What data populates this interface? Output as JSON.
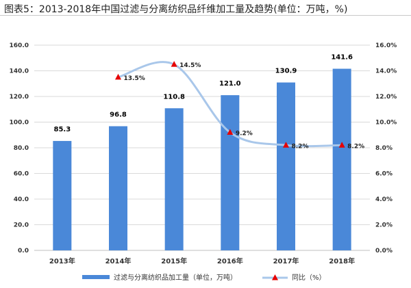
{
  "title": "图表5：2013-2018年中国过滤与分离纺织品纤维加工量及趋势(单位：万吨，%)",
  "colors": {
    "bar": "#4a88d8",
    "line": "#a9c7ea",
    "marker": "#e60000",
    "grid": "#d9d9d9"
  },
  "chart_data": {
    "type": "bar",
    "title": "图表5：2013-2018年中国过滤与分离纺织品纤维加工量及趋势(单位：万吨，%)",
    "categories": [
      "2013年",
      "2014年",
      "2015年",
      "2016年",
      "2017年",
      "2018年"
    ],
    "series": [
      {
        "name": "过滤与分离纺织品加工量（单位，万吨）",
        "type": "bar",
        "axis": "left",
        "values": [
          85.3,
          96.8,
          110.8,
          121.0,
          130.9,
          141.6
        ],
        "labels": [
          "85.3",
          "96.8",
          "110.8",
          "121.0",
          "130.9",
          "141.6"
        ]
      },
      {
        "name": "同比（%）",
        "type": "line",
        "axis": "right",
        "smooth": true,
        "values": [
          null,
          13.5,
          14.5,
          9.2,
          8.2,
          8.2
        ],
        "labels": [
          "",
          "13.5%",
          "14.5%",
          "9.2%",
          "8.2%",
          "8.2%"
        ]
      }
    ],
    "ylim_left": [
      0,
      160
    ],
    "yticks_left": [
      "0.0",
      "20.0",
      "40.0",
      "60.0",
      "80.0",
      "100.0",
      "120.0",
      "140.0",
      "160.0"
    ],
    "ylim_right": [
      0,
      16
    ],
    "yticks_right": [
      "0.0%",
      "2.0%",
      "4.0%",
      "6.0%",
      "8.0%",
      "10.0%",
      "12.0%",
      "14.0%",
      "16.0%"
    ],
    "grid": true,
    "legend": "bottom"
  }
}
